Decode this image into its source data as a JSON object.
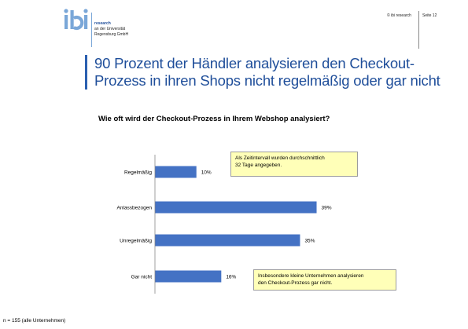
{
  "header": {
    "logo_text": "ibi",
    "research": "research",
    "affiliation_line1": "an der Universität",
    "affiliation_line2": "Regensburg GmbH",
    "copyright": "© ibi research",
    "page": "Seite 12"
  },
  "headline_line1": "90 Prozent der Händler analysieren den Checkout-",
  "headline_line2": "Prozess in ihren Shops nicht regelmäßig oder gar nicht",
  "colors": {
    "bar": "#4472c4",
    "headline": "#1f4e9a",
    "note_bg": "#ffffb8"
  },
  "chart_data": {
    "type": "bar",
    "orientation": "horizontal",
    "title": "Wie oft wird der Checkout-Prozess in Ihrem Webshop analysiert?",
    "categories": [
      "Regelmäßig",
      "Anlassbezogen",
      "Unregelmäßig",
      "Gar nicht"
    ],
    "values": [
      10,
      39,
      35,
      16
    ],
    "value_labels": [
      "10%",
      "39%",
      "35%",
      "16%"
    ],
    "unit": "%",
    "xlim": [
      0,
      45
    ],
    "grid": false,
    "annotations": [
      "Als Zeitintervall wurden durchschnittlich 32 Tage angegeben.",
      "Insbesondere kleine Unternehmen analysieren den Checkout-Prozess gar nicht."
    ]
  },
  "notes": {
    "note1_line1": "Als Zeitintervall wurden durchschnittlich",
    "note1_line2": "32 Tage angegeben.",
    "note2_line1": "Insbesondere kleine Unternehmen analysieren",
    "note2_line2": "den Checkout-Prozess gar nicht."
  },
  "footnote": "n = 155 (alle Unternehmen)"
}
